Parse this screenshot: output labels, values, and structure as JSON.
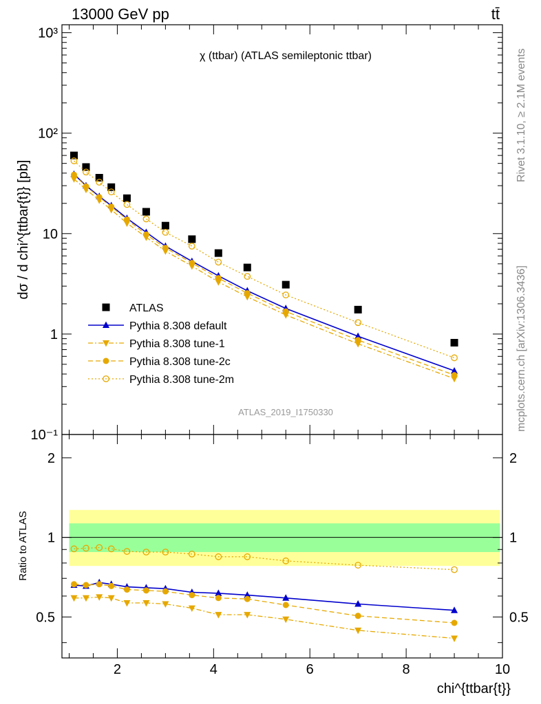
{
  "header": {
    "energy_label": "13000 GeV pp",
    "process_label": "tt̄"
  },
  "side": {
    "rivet_label": "Rivet 3.1.10, ≥ 2.1M events",
    "mcplots_label": "mcplots.cern.ch [arXiv:1306.3436]"
  },
  "chart_data": [
    {
      "type": "scatter",
      "title": "χ (ttbar) (ATLAS semileptonic ttbar)",
      "analysis_tag": "ATLAS_2019_I1750330",
      "xlabel": "chi^{ttbar{t}}",
      "ylabel": "dσ / d chi^{ttbar{t}} [pb]",
      "yscale": "log",
      "xlim": [
        0.85,
        10
      ],
      "ylim": [
        0.1,
        1200
      ],
      "y_ticks": [
        "10⁻¹",
        "1",
        "10",
        "10²",
        "10³"
      ],
      "legend_position": "lower-left",
      "x": [
        1.1,
        1.35,
        1.625,
        1.875,
        2.2,
        2.6,
        3.0,
        3.55,
        4.1,
        4.7,
        5.5,
        7.0,
        9.0
      ],
      "series": [
        {
          "name": "ATLAS",
          "color": "#000000",
          "marker": "square",
          "line": "none",
          "values": [
            60,
            46,
            36,
            29,
            22.5,
            16.5,
            12,
            8.8,
            6.4,
            4.6,
            3.1,
            1.75,
            0.82
          ]
        },
        {
          "name": "Pythia 8.308 default",
          "color": "#0000cc",
          "marker": "triangle-up",
          "line": "solid",
          "values": [
            39,
            30,
            23.5,
            19,
            14.2,
            10.3,
            7.5,
            5.3,
            3.8,
            2.7,
            1.8,
            0.95,
            0.43
          ]
        },
        {
          "name": "Pythia 8.308 tune-1",
          "color": "#e6a800",
          "marker": "triangle-down",
          "line": "dashdot",
          "values": [
            35,
            27.5,
            21.5,
            17.3,
            12.7,
            9.2,
            6.7,
            4.75,
            3.3,
            2.35,
            1.55,
            0.8,
            0.36
          ]
        },
        {
          "name": "Pythia 8.308 tune-2c",
          "color": "#e6a800",
          "marker": "circle",
          "line": "dashed",
          "values": [
            38.5,
            29.5,
            23,
            18.5,
            13.8,
            9.8,
            7.2,
            5.1,
            3.6,
            2.55,
            1.68,
            0.87,
            0.39
          ]
        },
        {
          "name": "Pythia 8.308 tune-2m",
          "color": "#e6a800",
          "marker": "circle-open",
          "line": "dotted",
          "values": [
            53,
            41,
            32.5,
            26,
            19.5,
            14,
            10.3,
            7.5,
            5.2,
            3.75,
            2.45,
            1.3,
            0.58
          ]
        }
      ]
    },
    {
      "type": "line",
      "ylabel": "Ratio to ATLAS",
      "yscale": "log",
      "xlim": [
        0.85,
        10
      ],
      "ylim": [
        0.35,
        2.45
      ],
      "x_ticks": [
        "2",
        "4",
        "6",
        "8",
        "10"
      ],
      "y_ticks": [
        "0.5",
        "1",
        "2"
      ],
      "band_inner": [
        0.88,
        1.13
      ],
      "band_outer": [
        0.78,
        1.27
      ],
      "band_inner_color": "#99ff99",
      "band_outer_color": "#ffff99",
      "x": [
        1.1,
        1.35,
        1.625,
        1.875,
        2.2,
        2.6,
        3.0,
        3.55,
        4.1,
        4.7,
        5.5,
        7.0,
        9.0
      ],
      "series": [
        {
          "name": "Pythia 8.308 default",
          "color": "#0000cc",
          "marker": "triangle-up",
          "line": "solid",
          "values": [
            0.66,
            0.655,
            0.675,
            0.665,
            0.65,
            0.645,
            0.64,
            0.62,
            0.615,
            0.605,
            0.59,
            0.56,
            0.53
          ]
        },
        {
          "name": "Pythia 8.308 tune-1",
          "color": "#e6a800",
          "marker": "triangle-down",
          "line": "dashdot",
          "values": [
            0.59,
            0.59,
            0.595,
            0.59,
            0.565,
            0.565,
            0.56,
            0.54,
            0.51,
            0.51,
            0.49,
            0.445,
            0.415
          ]
        },
        {
          "name": "Pythia 8.308 tune-2c",
          "color": "#e6a800",
          "marker": "circle",
          "line": "dashed",
          "values": [
            0.665,
            0.66,
            0.665,
            0.655,
            0.635,
            0.63,
            0.625,
            0.605,
            0.59,
            0.585,
            0.555,
            0.505,
            0.475
          ]
        },
        {
          "name": "Pythia 8.308 tune-2m",
          "color": "#e6a800",
          "marker": "circle-open",
          "line": "dotted",
          "values": [
            0.905,
            0.91,
            0.915,
            0.905,
            0.885,
            0.88,
            0.88,
            0.865,
            0.845,
            0.845,
            0.815,
            0.785,
            0.755
          ]
        }
      ]
    }
  ]
}
